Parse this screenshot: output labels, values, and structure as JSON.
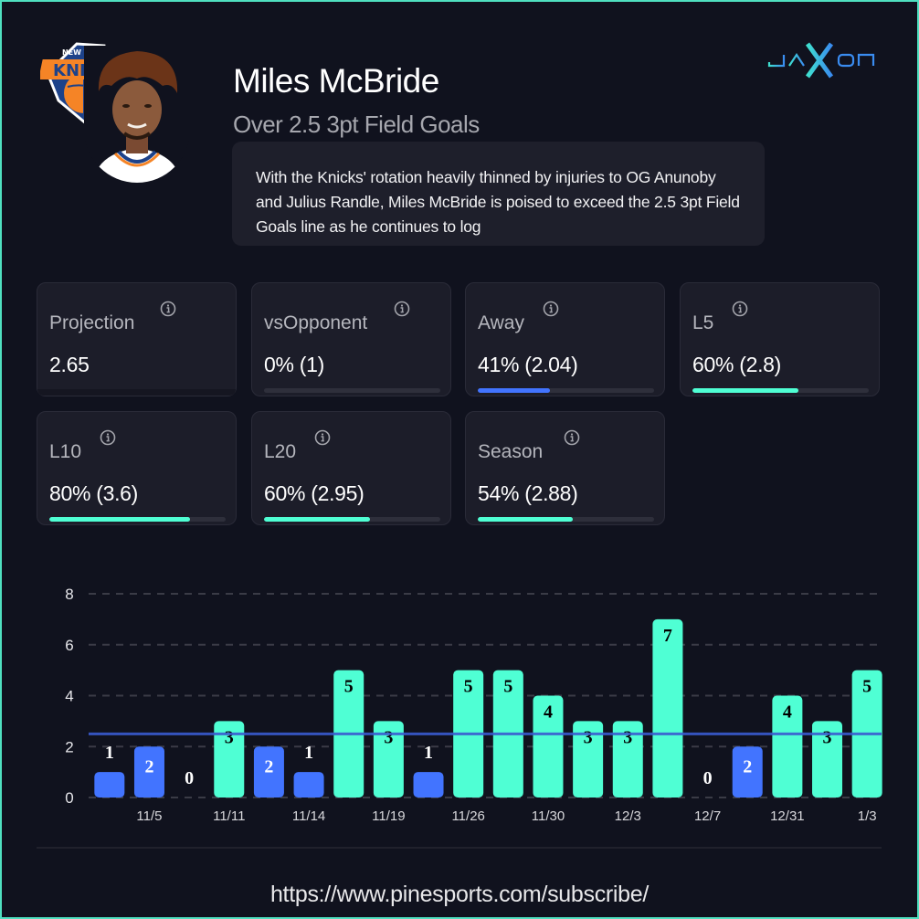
{
  "header": {
    "player_name": "Miles McBride",
    "prop_line": "Over 2.5 3pt Field Goals",
    "analysis_text": "With the Knicks' rotation heavily thinned by injuries to OG Anunoby and Julius Randle, Miles McBride is poised to exceed the 2.5 3pt Field Goals line as he continues to log",
    "team_logo": "new-york-knicks-logo",
    "brand": {
      "text_left": "JA",
      "text_mid": "X",
      "text_right": "ON"
    }
  },
  "colors": {
    "background": "#10121e",
    "frame_border": "#4fe0c0",
    "hit": "#4fffd4",
    "miss": "#4274ff",
    "line": "#3a5bd0",
    "card_bg": "#1c1d29"
  },
  "stats": [
    {
      "key": "projection",
      "label": "Projection",
      "value": "2.65",
      "bar": null
    },
    {
      "key": "vs-opponent",
      "label": "vsOpponent",
      "value": "0% (1)",
      "bar": {
        "percent": 0,
        "status": "miss"
      }
    },
    {
      "key": "away",
      "label": "Away",
      "value": "41% (2.04)",
      "bar": {
        "percent": 41,
        "status": "miss"
      }
    },
    {
      "key": "l5",
      "label": "L5",
      "value": "60% (2.8)",
      "bar": {
        "percent": 60,
        "status": "hit"
      }
    },
    {
      "key": "l10",
      "label": "L10",
      "value": "80% (3.6)",
      "bar": {
        "percent": 80,
        "status": "hit"
      }
    },
    {
      "key": "l20",
      "label": "L20",
      "value": "60% (2.95)",
      "bar": {
        "percent": 60,
        "status": "hit"
      }
    },
    {
      "key": "season",
      "label": "Season",
      "value": "54% (2.88)",
      "bar": {
        "percent": 54,
        "status": "hit"
      }
    }
  ],
  "chart_data": {
    "type": "bar",
    "title": "",
    "xlabel": "",
    "ylabel": "",
    "ylim": [
      0,
      8
    ],
    "yticks": [
      0,
      2,
      4,
      6,
      8
    ],
    "grid": true,
    "line_value": 2.5,
    "categories": [
      "",
      "11/5",
      "",
      "11/11",
      "",
      "11/14",
      "",
      "11/19",
      "",
      "11/26",
      "",
      "11/30",
      "",
      "12/3",
      "",
      "12/7",
      "",
      "12/31",
      "",
      "1/3"
    ],
    "values": [
      1,
      2,
      0,
      3,
      2,
      1,
      5,
      3,
      1,
      5,
      5,
      4,
      3,
      3,
      7,
      0,
      2,
      4,
      3,
      5
    ]
  },
  "footer": {
    "url": "https://www.pinesports.com/subscribe/"
  }
}
